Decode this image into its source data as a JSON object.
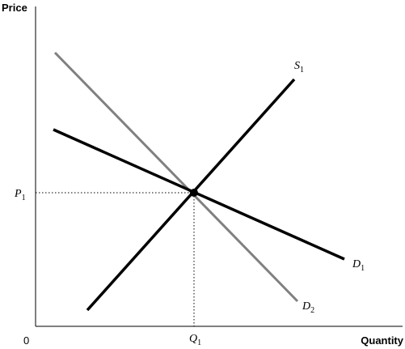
{
  "axes": {
    "y_title": "Price",
    "x_title": "Quantity",
    "origin": "0"
  },
  "labels": {
    "p1": {
      "letter": "P",
      "sub": "1"
    },
    "q1": {
      "letter": "Q",
      "sub": "1"
    },
    "s1": {
      "letter": "S",
      "sub": "1"
    },
    "d1": {
      "letter": "D",
      "sub": "1"
    },
    "d2": {
      "letter": "D",
      "sub": "2"
    }
  },
  "colors": {
    "axis": "#000000",
    "supply_s1": "#000000",
    "demand_d1": "#000000",
    "demand_d2": "#808080",
    "guide_lines": "#000000"
  }
}
